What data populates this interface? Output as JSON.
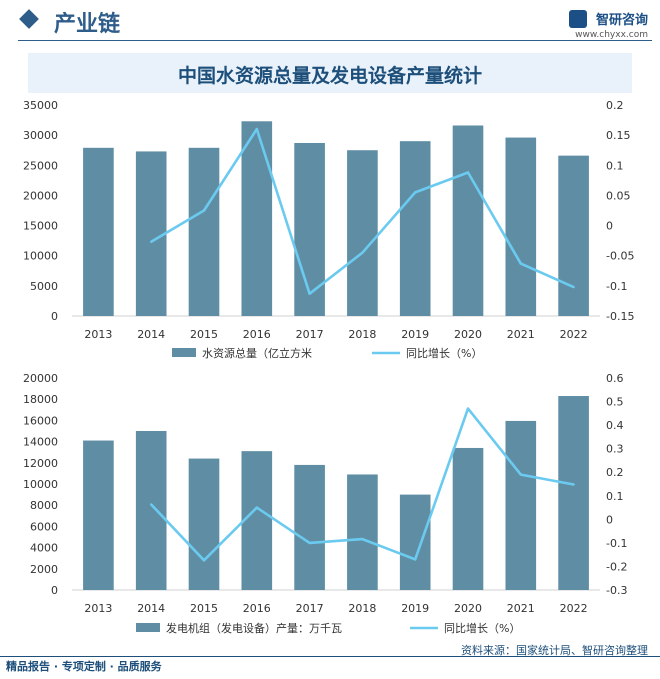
{
  "header": {
    "section_title": "产业链",
    "brand_name": "智研咨询",
    "brand_url": "www.chyxx.com"
  },
  "main_title": "中国水资源总量及发电设备产量统计",
  "colors": {
    "bar": "#5f8ea4",
    "line": "#6bcaf0",
    "title_text": "#1d4f7a",
    "title_band": "#e9f2fb"
  },
  "chart_data": [
    {
      "type": "bar",
      "categories": [
        "2013",
        "2014",
        "2015",
        "2016",
        "2017",
        "2018",
        "2019",
        "2020",
        "2021",
        "2022"
      ],
      "series": [
        {
          "name": "水资源总量（亿立方米",
          "type": "bar",
          "axis": "left",
          "values": [
            27900,
            27300,
            27900,
            32300,
            28700,
            27500,
            29000,
            31600,
            29600,
            26600
          ]
        },
        {
          "name": "同比增长（%）",
          "type": "line",
          "axis": "right",
          "values": [
            null,
            -0.027,
            0.025,
            0.16,
            -0.113,
            -0.045,
            0.055,
            0.088,
            -0.063,
            -0.102
          ]
        }
      ],
      "left_axis": {
        "ylim": [
          0,
          35000
        ],
        "ticks": [
          "0",
          "5000",
          "10000",
          "15000",
          "20000",
          "25000",
          "30000",
          "35000"
        ]
      },
      "right_axis": {
        "ylim": [
          -0.15,
          0.2
        ],
        "ticks": [
          "-0.15",
          "-0.1",
          "-0.05",
          "0",
          "0.05",
          "0.1",
          "0.15",
          "0.2"
        ]
      },
      "legend_position": "bottom"
    },
    {
      "type": "bar",
      "categories": [
        "2013",
        "2014",
        "2015",
        "2016",
        "2017",
        "2018",
        "2019",
        "2020",
        "2021",
        "2022"
      ],
      "series": [
        {
          "name": "发电机组（发电设备）产量：万千瓦",
          "type": "bar",
          "axis": "left",
          "values": [
            14100,
            15000,
            12400,
            13100,
            11800,
            10900,
            9000,
            13400,
            15950,
            18300
          ]
        },
        {
          "name": "同比增长（%）",
          "type": "line",
          "axis": "right",
          "values": [
            null,
            0.063,
            -0.174,
            0.05,
            -0.1,
            -0.084,
            -0.17,
            0.47,
            0.19,
            0.148
          ]
        }
      ],
      "left_axis": {
        "ylim": [
          0,
          20000
        ],
        "ticks": [
          "0",
          "2000",
          "4000",
          "6000",
          "8000",
          "10000",
          "12000",
          "14000",
          "16000",
          "18000",
          "20000"
        ]
      },
      "right_axis": {
        "ylim": [
          -0.3,
          0.6
        ],
        "ticks": [
          "-0.3",
          "-0.2",
          "-0.1",
          "0",
          "0.1",
          "0.2",
          "0.3",
          "0.4",
          "0.5",
          "0.6"
        ]
      },
      "legend_position": "bottom"
    }
  ],
  "footer": {
    "left_text": "精品报告 · 专项定制 · 品质服务",
    "source_text": "资料来源：国家统计局、智研咨询整理"
  }
}
